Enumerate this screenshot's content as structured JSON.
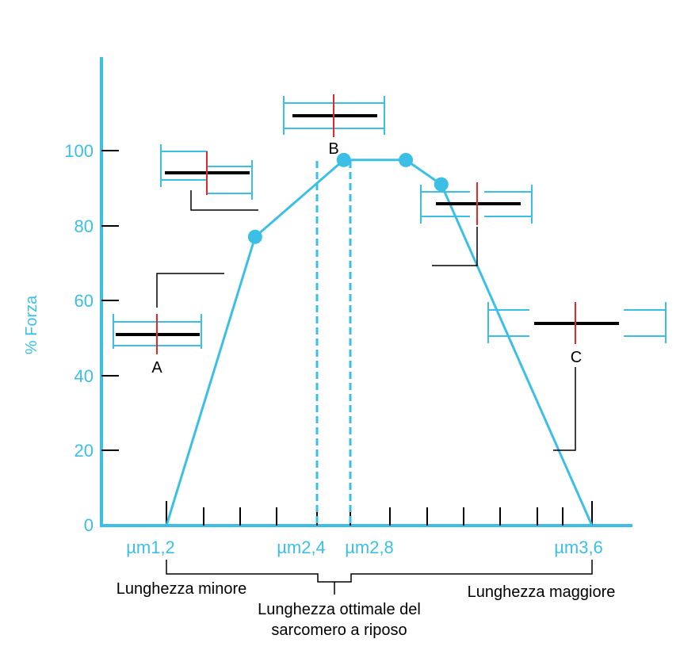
{
  "colors": {
    "accent": "#3bbfe6",
    "filament": "#000000",
    "z_line": "#e8262a",
    "leader": "#000000"
  },
  "y_axis": {
    "label": "% Forza",
    "ticks": [
      "0",
      "20",
      "40",
      "60",
      "80",
      "100"
    ]
  },
  "x_axis": {
    "labels": [
      "µm1,2",
      "µm2,4",
      "µm2,8",
      "µm3,6"
    ]
  },
  "curve": {
    "points": [
      {
        "x": 1.2,
        "y": 0
      },
      {
        "x": 1.7,
        "y": 77
      },
      {
        "x": 2.2,
        "y": 97.5
      },
      {
        "x": 2.55,
        "y": 97.5
      },
      {
        "x": 2.75,
        "y": 91
      },
      {
        "x": 3.6,
        "y": 0
      }
    ]
  },
  "markers": {
    "a": "A",
    "b": "B",
    "c": "C"
  },
  "captions": {
    "shorter": "Lunghezza minore",
    "optimal_line1": "Lunghezza ottimale del",
    "optimal_line2": "sarcomero a riposo",
    "longer": "Lunghezza maggiore"
  }
}
